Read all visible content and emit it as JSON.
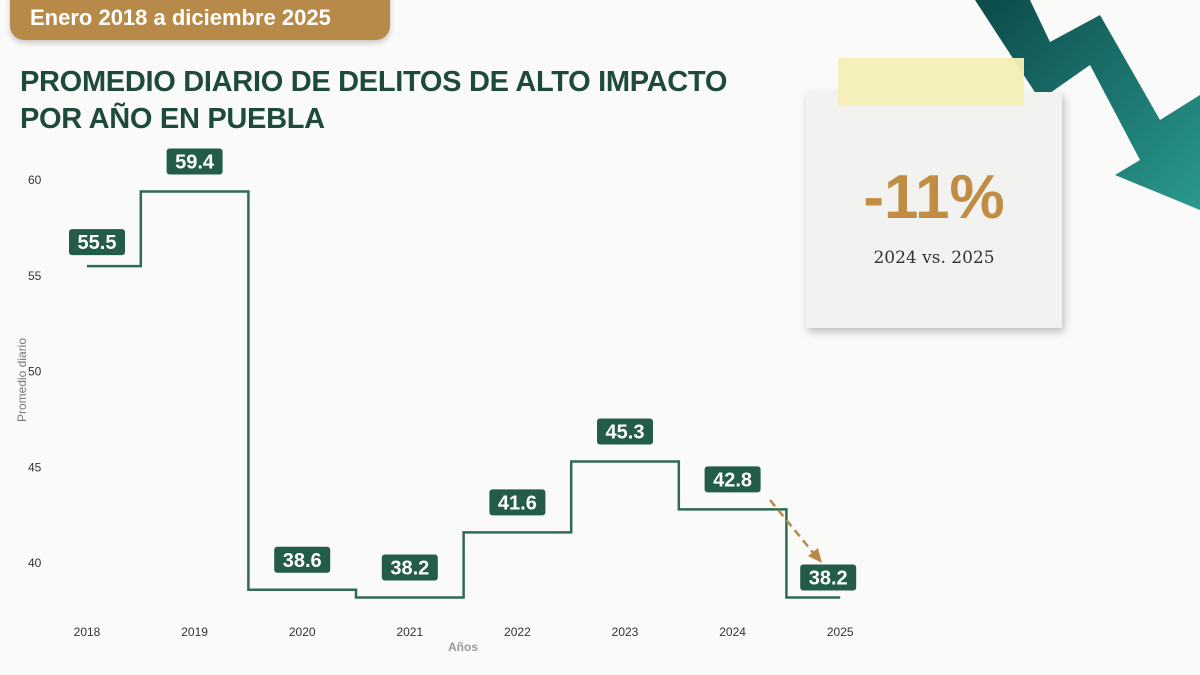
{
  "badge": "Enero 2018 a diciembre 2025",
  "title_line1": "PROMEDIO DIARIO DE DELITOS DE ALTO IMPACTO",
  "title_line2": "POR AÑO EN PUEBLA",
  "callout": {
    "value": "-11%",
    "comparison": "2024 vs. 2025"
  },
  "colors": {
    "line": "#2e6b52",
    "label_bg": "#235c48",
    "accent": "#b88a4a",
    "arrow": "#1f6f68"
  },
  "chart_data": {
    "type": "line",
    "step": "mid",
    "categories": [
      "2018",
      "2019",
      "2020",
      "2021",
      "2022",
      "2023",
      "2024",
      "2025"
    ],
    "values": [
      55.5,
      59.4,
      38.6,
      38.2,
      41.6,
      45.3,
      42.8,
      38.2
    ],
    "data_labels": [
      "55.5",
      "59.4",
      "38.6",
      "38.2",
      "41.6",
      "45.3",
      "42.8",
      "38.2"
    ],
    "xlabel": "Años",
    "ylabel": "Promedio diario",
    "yticks": [
      40,
      45,
      50,
      55,
      60
    ],
    "ylim": [
      40,
      60
    ],
    "grid": false
  }
}
